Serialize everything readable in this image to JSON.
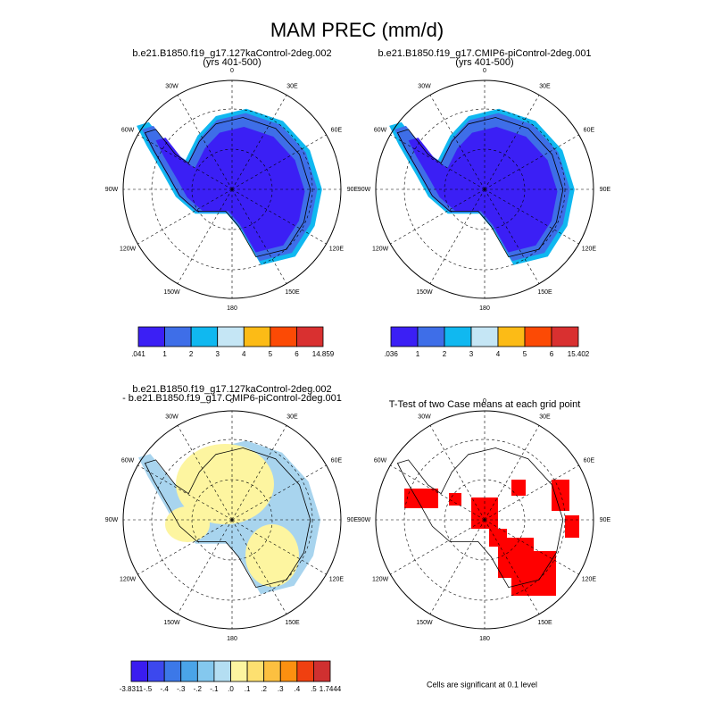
{
  "title": "MAM PREC (mm/d)",
  "longitude_labels": [
    "0",
    "30E",
    "60E",
    "90E",
    "120E",
    "150E",
    "180",
    "150W",
    "120W",
    "90W",
    "60W",
    "30W"
  ],
  "panels": [
    {
      "title": [
        "b.e21.B1850.f19_g17.127kaControl-2deg.002",
        "(yrs 401-500)"
      ],
      "colorbar": {
        "colors": [
          "#3b1ff5",
          "#3e6ee8",
          "#10b8f0",
          "#c5e6f5",
          "#fcbb16",
          "#fc4a05",
          "#d93030"
        ],
        "labels": [
          ".041",
          "1",
          "2",
          "3",
          "4",
          "5",
          "6",
          "14.859"
        ]
      }
    },
    {
      "title": [
        "b.e21.B1850.f19_g17.CMIP6-piControl-2deg.001",
        "(yrs 401-500)"
      ],
      "colorbar": {
        "colors": [
          "#3b1ff5",
          "#3e6ee8",
          "#10b8f0",
          "#c5e6f5",
          "#fcbb16",
          "#fc4a05",
          "#d93030"
        ],
        "labels": [
          ".036",
          "1",
          "2",
          "3",
          "4",
          "5",
          "6",
          "15.402"
        ]
      }
    },
    {
      "title": [
        "b.e21.B1850.f19_g17.127kaControl-2deg.002",
        "- b.e21.B1850.f19_g17.CMIP6-piControl-2deg.001"
      ],
      "colorbar": {
        "colors": [
          "#3a1cf0",
          "#3c48ee",
          "#3c78e8",
          "#4aa4e8",
          "#84c8ee",
          "#b4def2",
          "#fdf5a0",
          "#fde070",
          "#fcc040",
          "#fc9010",
          "#f04010",
          "#d03030"
        ],
        "labels": [
          "-3.8311",
          "-.5",
          "-.4",
          "-.3",
          "-.2",
          "-.1",
          ".0",
          ".1",
          ".2",
          ".3",
          ".4",
          ".5",
          "1.7444"
        ]
      }
    },
    {
      "title": [
        "T-Test of two Case means at each grid point"
      ],
      "footnote": "Cells are significant at 0.1 level"
    }
  ]
}
